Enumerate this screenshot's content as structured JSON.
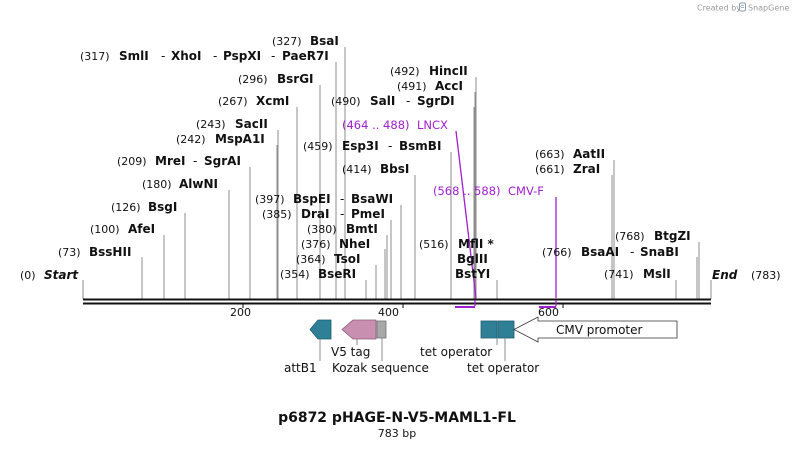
{
  "watermark": {
    "prefix": "Created by",
    "brand": "SnapGene"
  },
  "map": {
    "title": "p6872 pHAGE-N-V5-MAML1-FL",
    "length_label": "783 bp",
    "total_bp": 783,
    "start": {
      "pos": "(0)",
      "label": "Start"
    },
    "end": {
      "pos": "(783)",
      "label": "End"
    },
    "ticks": [
      {
        "bp": 200,
        "label": "200"
      },
      {
        "bp": 400,
        "label": "400"
      },
      {
        "bp": 600,
        "label": "600"
      }
    ]
  },
  "enzymes": [
    {
      "id": "bsahii",
      "pos": "(73)",
      "names": [
        "BssHII"
      ],
      "cut": 73
    },
    {
      "id": "afei",
      "pos": "(100)",
      "names": [
        "AfeI"
      ],
      "cut": 100
    },
    {
      "id": "bsgi",
      "pos": "(126)",
      "names": [
        "BsgI"
      ],
      "cut": 126
    },
    {
      "id": "alwni",
      "pos": "(180)",
      "names": [
        "AlwNI"
      ],
      "cut": 180
    },
    {
      "id": "mrei",
      "pos": "(209)",
      "names": [
        "MreI",
        "SgrAI"
      ],
      "cut": 209
    },
    {
      "id": "mspa1i",
      "pos": "(242)",
      "names": [
        "MspA1I"
      ],
      "cut": 242
    },
    {
      "id": "sacii",
      "pos": "(243)",
      "names": [
        "SacII"
      ],
      "cut": 243
    },
    {
      "id": "xcmi",
      "pos": "(267)",
      "names": [
        "XcmI"
      ],
      "cut": 267
    },
    {
      "id": "bsrgi",
      "pos": "(296)",
      "names": [
        "BsrGI"
      ],
      "cut": 296
    },
    {
      "id": "smli",
      "pos": "(317)",
      "names": [
        "SmlI",
        "XhoI",
        "PspXI",
        "PaeR7I"
      ],
      "cut": 317
    },
    {
      "id": "bsai",
      "pos": "(327)",
      "names": [
        "BsaI"
      ],
      "cut": 327
    },
    {
      "id": "bseri",
      "pos": "(354)",
      "names": [
        "BseRI"
      ],
      "cut": 354
    },
    {
      "id": "tsoi",
      "pos": "(364)",
      "names": [
        "TsoI"
      ],
      "cut": 364
    },
    {
      "id": "nhei",
      "pos": "(376)",
      "names": [
        "NheI"
      ],
      "cut": 376
    },
    {
      "id": "bmti",
      "pos": "(380)",
      "names": [
        "BmtI"
      ],
      "cut": 380
    },
    {
      "id": "drai",
      "pos": "(385)",
      "names": [
        "DraI",
        "PmeI"
      ],
      "cut": 385
    },
    {
      "id": "bspei",
      "pos": "(397)",
      "names": [
        "BspEI",
        "BsaWI"
      ],
      "cut": 397
    },
    {
      "id": "bbsi",
      "pos": "(414)",
      "names": [
        "BbsI"
      ],
      "cut": 414
    },
    {
      "id": "esp3i",
      "pos": "(459)",
      "names": [
        "Esp3I",
        "BsmBI"
      ],
      "cut": 459
    },
    {
      "id": "sali",
      "pos": "(490)",
      "names": [
        "SalI",
        "SgrDI"
      ],
      "cut": 490
    },
    {
      "id": "acci",
      "pos": "(491)",
      "names": [
        "AccI"
      ],
      "cut": 491
    },
    {
      "id": "hincii",
      "pos": "(492)",
      "names": [
        "HincII"
      ],
      "cut": 492
    },
    {
      "id": "mfli",
      "pos": "(516)",
      "names": [
        "MflI *",
        "BglII",
        "BstYI"
      ],
      "cut": 516
    },
    {
      "id": "zrai",
      "pos": "(661)",
      "names": [
        "ZraI"
      ],
      "cut": 661
    },
    {
      "id": "aatii",
      "pos": "(663)",
      "names": [
        "AatII"
      ],
      "cut": 663
    },
    {
      "id": "bsaai",
      "pos": "(766)",
      "names": [
        "BsaAI",
        "SnaBI"
      ],
      "cut": 766
    },
    {
      "id": "msli",
      "pos": "(741)",
      "names": [
        "MslI"
      ],
      "cut": 741
    },
    {
      "id": "btgzi",
      "pos": "(768)",
      "names": [
        "BtgZI"
      ],
      "cut": 768
    }
  ],
  "primers": [
    {
      "id": "lncx",
      "range": "(464 .. 488)",
      "label": "LNCX",
      "start": 464,
      "end": 488
    },
    {
      "id": "cmvf",
      "range": "(568 .. 588)",
      "label": "CMV-F",
      "start": 568,
      "end": 588
    }
  ],
  "features": [
    {
      "id": "attb1",
      "label": "attB1",
      "type": "arrow-left",
      "color": "#2f7f96"
    },
    {
      "id": "v5tag",
      "label": "V5 tag",
      "type": "arrow-left",
      "color": "#c98fb0"
    },
    {
      "id": "kozak",
      "label": "Kozak sequence",
      "type": "box",
      "color": "#a8a8a8"
    },
    {
      "id": "teto1",
      "label": "tet operator",
      "type": "box",
      "color": "#2f7f96"
    },
    {
      "id": "teto2",
      "label": "tet operator",
      "type": "box",
      "color": "#2f7f96"
    },
    {
      "id": "cmv",
      "label": "CMV promoter",
      "type": "arrow-left",
      "color": "#ffffff"
    }
  ],
  "colors": {
    "primer": "#a020d0",
    "teal": "#2f7f96",
    "pink": "#c98fb0",
    "gray": "#a8a8a8"
  }
}
